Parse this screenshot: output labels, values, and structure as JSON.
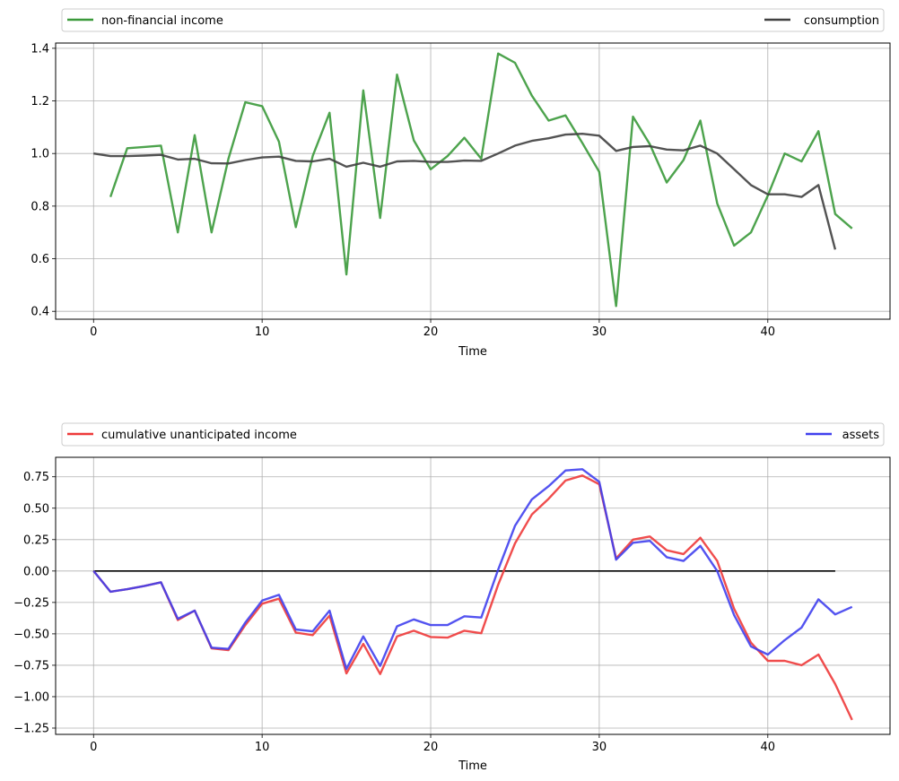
{
  "chart_data": [
    {
      "type": "line",
      "xlabel": "Time",
      "ylabel": "",
      "xlim": [
        -2.25,
        47.25
      ],
      "ylim": [
        0.37,
        1.42
      ],
      "xticks": [
        0,
        10,
        20,
        30,
        40
      ],
      "xtick_labels": [
        "0",
        "10",
        "20",
        "30",
        "40"
      ],
      "yticks": [
        0.4,
        0.6,
        0.8,
        1.0,
        1.2,
        1.4
      ],
      "ytick_labels": [
        "0.4",
        "0.6",
        "0.8",
        "1.0",
        "1.2",
        "1.4"
      ],
      "grid": true,
      "legend": [
        {
          "label": "non-financial income",
          "color": "#3a993a",
          "placement": "left"
        },
        {
          "label": "consumption",
          "color": "#404040",
          "placement": "right"
        }
      ],
      "series": [
        {
          "name": "non-financial income",
          "color": "#3a993a",
          "x": [
            1,
            2,
            3,
            4,
            5,
            6,
            7,
            8,
            9,
            10,
            11,
            12,
            13,
            14,
            15,
            16,
            17,
            18,
            19,
            20,
            21,
            22,
            23,
            24,
            25,
            26,
            27,
            28,
            29,
            30,
            31,
            32,
            33,
            34,
            35,
            36,
            37,
            38,
            39,
            40,
            41,
            42,
            43,
            44,
            45
          ],
          "values": [
            0.835,
            1.02,
            1.025,
            1.03,
            0.7,
            1.07,
            0.7,
            0.98,
            1.195,
            1.18,
            1.045,
            0.72,
            0.99,
            1.155,
            0.54,
            1.24,
            0.755,
            1.3,
            1.05,
            0.94,
            0.99,
            1.06,
            0.98,
            1.38,
            1.345,
            1.22,
            1.125,
            1.145,
            1.04,
            0.93,
            0.42,
            1.14,
            1.035,
            0.89,
            0.975,
            1.125,
            0.81,
            0.65,
            0.7,
            0.84,
            1.0,
            0.97,
            1.085,
            0.77,
            0.715
          ]
        },
        {
          "name": "consumption",
          "color": "#404040",
          "x": [
            0,
            1,
            2,
            3,
            4,
            5,
            6,
            7,
            8,
            9,
            10,
            11,
            12,
            13,
            14,
            15,
            16,
            17,
            18,
            19,
            20,
            21,
            22,
            23,
            24,
            25,
            26,
            27,
            28,
            29,
            30,
            31,
            32,
            33,
            34,
            35,
            36,
            37,
            38,
            39,
            40,
            41,
            42,
            43,
            44
          ],
          "values": [
            1.0,
            0.99,
            0.99,
            0.992,
            0.995,
            0.977,
            0.98,
            0.963,
            0.962,
            0.975,
            0.985,
            0.988,
            0.972,
            0.97,
            0.98,
            0.95,
            0.965,
            0.95,
            0.97,
            0.972,
            0.968,
            0.968,
            0.973,
            0.972,
            1.0,
            1.03,
            1.048,
            1.058,
            1.072,
            1.075,
            1.068,
            1.01,
            1.025,
            1.028,
            1.015,
            1.012,
            1.03,
            1.0,
            0.94,
            0.88,
            0.845,
            0.845,
            0.835,
            0.88,
            0.635
          ]
        }
      ]
    },
    {
      "type": "line",
      "xlabel": "Time",
      "ylabel": "",
      "xlim": [
        -2.25,
        47.25
      ],
      "ylim": [
        -1.3,
        0.905
      ],
      "xticks": [
        0,
        10,
        20,
        30,
        40
      ],
      "xtick_labels": [
        "0",
        "10",
        "20",
        "30",
        "40"
      ],
      "yticks": [
        -1.25,
        -1.0,
        -0.75,
        -0.5,
        -0.25,
        0.0,
        0.25,
        0.5,
        0.75
      ],
      "ytick_labels": [
        "−1.25",
        "−1.00",
        "−0.75",
        "−0.50",
        "−0.25",
        "0.00",
        "0.25",
        "0.50",
        "0.75"
      ],
      "grid": true,
      "legend": [
        {
          "label": "cumulative unanticipated income",
          "color": "#ee3a3a",
          "placement": "left"
        },
        {
          "label": "assets",
          "color": "#4040ee",
          "placement": "right"
        }
      ],
      "zero_line": {
        "color": "#000000",
        "x": [
          0,
          44
        ],
        "value": 0
      },
      "series": [
        {
          "name": "cumulative unanticipated income",
          "color": "#ee3a3a",
          "x": [
            0,
            1,
            2,
            3,
            4,
            5,
            6,
            7,
            8,
            9,
            10,
            11,
            12,
            13,
            14,
            15,
            16,
            17,
            18,
            19,
            20,
            21,
            22,
            23,
            24,
            25,
            26,
            27,
            28,
            29,
            30,
            31,
            32,
            33,
            34,
            35,
            36,
            37,
            38,
            39,
            40,
            41,
            42,
            43,
            44,
            45
          ],
          "values": [
            0.0,
            -0.165,
            -0.145,
            -0.12,
            -0.09,
            -0.39,
            -0.315,
            -0.615,
            -0.63,
            -0.43,
            -0.26,
            -0.22,
            -0.49,
            -0.51,
            -0.355,
            -0.815,
            -0.58,
            -0.82,
            -0.52,
            -0.475,
            -0.525,
            -0.53,
            -0.475,
            -0.495,
            -0.11,
            0.22,
            0.45,
            0.575,
            0.72,
            0.76,
            0.69,
            0.1,
            0.25,
            0.275,
            0.165,
            0.135,
            0.265,
            0.08,
            -0.3,
            -0.57,
            -0.715,
            -0.715,
            -0.75,
            -0.665,
            -0.9,
            -1.185
          ]
        },
        {
          "name": "assets",
          "color": "#4040ee",
          "x": [
            0,
            1,
            2,
            3,
            4,
            5,
            6,
            7,
            8,
            9,
            10,
            11,
            12,
            13,
            14,
            15,
            16,
            17,
            18,
            19,
            20,
            21,
            22,
            23,
            24,
            25,
            26,
            27,
            28,
            29,
            30,
            31,
            32,
            33,
            34,
            35,
            36,
            37,
            38,
            39,
            40,
            41,
            42,
            43,
            44,
            45
          ],
          "values": [
            0.0,
            -0.165,
            -0.145,
            -0.12,
            -0.09,
            -0.38,
            -0.315,
            -0.61,
            -0.62,
            -0.41,
            -0.235,
            -0.19,
            -0.465,
            -0.48,
            -0.315,
            -0.78,
            -0.52,
            -0.755,
            -0.44,
            -0.385,
            -0.43,
            -0.43,
            -0.36,
            -0.37,
            0.01,
            0.36,
            0.57,
            0.675,
            0.8,
            0.81,
            0.71,
            0.09,
            0.225,
            0.24,
            0.11,
            0.08,
            0.2,
            0.0,
            -0.35,
            -0.6,
            -0.665,
            -0.55,
            -0.45,
            -0.225,
            -0.345,
            -0.285
          ]
        }
      ]
    }
  ]
}
